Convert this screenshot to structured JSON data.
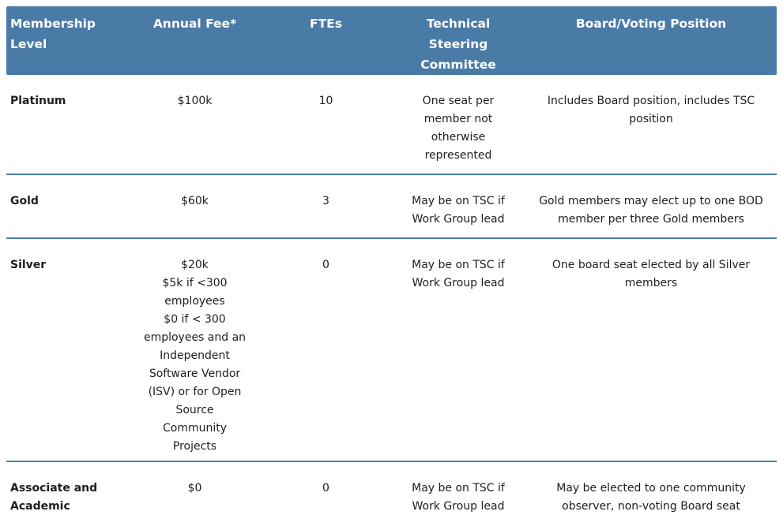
{
  "table": {
    "columns": [
      {
        "label": "Membership\nLevel"
      },
      {
        "label": "Annual Fee*"
      },
      {
        "label": "FTEs"
      },
      {
        "label": "Technical\nSteering\nCommittee"
      },
      {
        "label": "Board/Voting Position"
      }
    ],
    "rows": [
      {
        "level": "Platinum",
        "fee": "$100k",
        "ftes": "10",
        "tsc": "One seat per\nmember not\notherwise\nrepresented",
        "board": "Includes Board position, includes TSC\nposition"
      },
      {
        "level": "Gold",
        "fee": "$60k",
        "ftes": "3",
        "tsc": "May be on TSC if\nWork Group lead",
        "board": "Gold members may elect up to one BOD\nmember per three Gold members"
      },
      {
        "level": "Silver",
        "fee": "$20k\n$5k if <300\nemployees\n$0 if < 300\nemployees and an\nIndependent\nSoftware Vendor\n(ISV) or for Open\nSource\nCommunity\nProjects",
        "ftes": "0",
        "tsc": "May be on TSC if\nWork Group lead",
        "board": "One board seat elected by all Silver\nmembers"
      },
      {
        "level": "Associate and Academic",
        "fee": "$0",
        "ftes": "0",
        "tsc": "May be on TSC if\nWork Group lead",
        "board": "May be elected to one community\nobserver, non-voting Board seat"
      }
    ],
    "colors": {
      "header_bg": "#4a7aa6",
      "header_text": "#ffffff",
      "divider": "#4b80ad",
      "body_text": "#1e1e1e",
      "background": "#ffffff"
    }
  }
}
